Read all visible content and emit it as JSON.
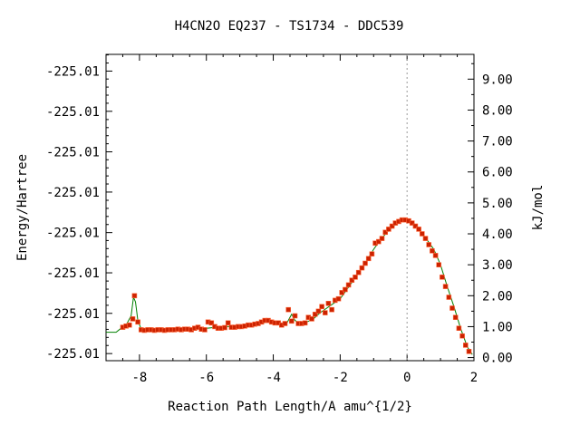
{
  "chart_data": {
    "type": "scatter",
    "title": "H4CN2O    EQ237 - TS1734 - DDC539",
    "xlabel": "Reaction Path Length/A amu^{1/2}",
    "ylabel": "Energy/Hartree",
    "y2label": "kJ/mol",
    "xlim": [
      -9.0,
      2.0
    ],
    "ylim": [
      -0.1,
      9.8
    ],
    "x_ticks": [
      -8,
      -6,
      -4,
      -2,
      0,
      2
    ],
    "x_tick_labels": [
      "-8",
      "-6",
      "-4",
      "-2",
      "0",
      "2"
    ],
    "y2_ticks": [
      0,
      1,
      2,
      3,
      4,
      5,
      6,
      7,
      8,
      9
    ],
    "y2_tick_labels": [
      "0.00",
      "1.00",
      "2.00",
      "3.00",
      "4.00",
      "5.00",
      "6.00",
      "7.00",
      "8.00",
      "9.00"
    ],
    "y_left_ticks": [
      0.13,
      1.43,
      2.74,
      4.04,
      5.35,
      6.65,
      7.96,
      9.26
    ],
    "y_left_tick_labels": [
      "-225.01",
      "-225.01",
      "-225.01",
      "-225.01",
      "-225.01",
      "-225.01",
      "-225.01",
      "-225.01"
    ],
    "grid": false,
    "ts_line_x": 0,
    "line_color": "#008000",
    "marker_color": "#cc2200",
    "series": [
      {
        "x": [
          -8.5,
          -8.4,
          -8.3,
          -8.2,
          -8.15,
          -8.05,
          -7.95,
          -7.85,
          -7.75,
          -7.65,
          -7.55,
          -7.45,
          -7.35,
          -7.25,
          -7.15,
          -7.05,
          -6.95,
          -6.85,
          -6.75,
          -6.65,
          -6.55,
          -6.45,
          -6.35,
          -6.25,
          -6.15,
          -6.05,
          -5.95,
          -5.85,
          -5.75,
          -5.65,
          -5.55,
          -5.45,
          -5.35,
          -5.25,
          -5.15,
          -5.05,
          -4.95,
          -4.85,
          -4.75,
          -4.65,
          -4.55,
          -4.45,
          -4.35,
          -4.25,
          -4.15,
          -4.05,
          -3.95,
          -3.85,
          -3.75,
          -3.65,
          -3.55,
          -3.45,
          -3.35,
          -3.25,
          -3.15,
          -3.05,
          -2.95,
          -2.85,
          -2.75,
          -2.65,
          -2.55,
          -2.45,
          -2.35,
          -2.25,
          -2.15,
          -2.05,
          -1.95,
          -1.85,
          -1.75,
          -1.65,
          -1.55,
          -1.45,
          -1.35,
          -1.25,
          -1.15,
          -1.05,
          -0.95,
          -0.85,
          -0.75,
          -0.65,
          -0.55,
          -0.45,
          -0.35,
          -0.25,
          -0.15,
          -0.05,
          0.05,
          0.15,
          0.25,
          0.35,
          0.45,
          0.55,
          0.65,
          0.75,
          0.85,
          0.95,
          1.05,
          1.15,
          1.25,
          1.35,
          1.45,
          1.55,
          1.65,
          1.75,
          1.85
        ],
        "y": [
          0.98,
          1.02,
          1.05,
          1.25,
          2.0,
          1.15,
          0.9,
          0.88,
          0.9,
          0.9,
          0.88,
          0.9,
          0.9,
          0.88,
          0.9,
          0.9,
          0.9,
          0.92,
          0.9,
          0.92,
          0.92,
          0.9,
          0.95,
          0.98,
          0.92,
          0.9,
          1.15,
          1.12,
          1.0,
          0.95,
          0.95,
          0.97,
          1.12,
          0.98,
          0.98,
          1.0,
          1.0,
          1.02,
          1.05,
          1.05,
          1.08,
          1.1,
          1.15,
          1.2,
          1.2,
          1.15,
          1.12,
          1.12,
          1.05,
          1.1,
          1.55,
          1.18,
          1.35,
          1.1,
          1.1,
          1.12,
          1.3,
          1.25,
          1.4,
          1.5,
          1.65,
          1.45,
          1.75,
          1.55,
          1.85,
          1.9,
          2.1,
          2.2,
          2.35,
          2.5,
          2.6,
          2.75,
          2.9,
          3.05,
          3.2,
          3.35,
          3.7,
          3.75,
          3.85,
          4.05,
          4.15,
          4.25,
          4.35,
          4.4,
          4.45,
          4.45,
          4.42,
          4.35,
          4.25,
          4.15,
          4.0,
          3.85,
          3.65,
          3.45,
          3.3,
          3.0,
          2.6,
          2.3,
          1.95,
          1.6,
          1.3,
          0.95,
          0.7,
          0.4,
          0.2
        ]
      }
    ],
    "curve": {
      "x": [
        -9.0,
        -8.7,
        -8.55,
        -8.4,
        -8.25,
        -8.18,
        -8.12,
        -8.05,
        -7.95,
        -7.8,
        -7.0,
        -6.0,
        -5.5,
        -5.0,
        -4.5,
        -4.2,
        -4.0,
        -3.8,
        -3.6,
        -3.45,
        -3.35,
        -3.2,
        -3.0,
        -2.8,
        -2.6,
        -2.4,
        -2.2,
        -2.0,
        -1.8,
        -1.6,
        -1.4,
        -1.2,
        -1.0,
        -0.8,
        -0.6,
        -0.4,
        -0.2,
        0.0,
        0.2,
        0.4,
        0.6,
        0.8,
        1.0,
        1.2,
        1.4,
        1.6,
        1.8,
        1.95
      ],
      "y": [
        0.82,
        0.82,
        0.95,
        1.05,
        1.35,
        1.95,
        1.8,
        1.2,
        0.92,
        0.88,
        0.9,
        0.95,
        1.0,
        1.0,
        1.05,
        1.15,
        1.18,
        1.1,
        1.1,
        1.4,
        1.2,
        1.1,
        1.15,
        1.25,
        1.45,
        1.6,
        1.75,
        1.9,
        2.2,
        2.5,
        2.8,
        3.15,
        3.5,
        3.8,
        4.05,
        4.25,
        4.4,
        4.45,
        4.35,
        4.1,
        3.8,
        3.5,
        3.0,
        2.3,
        1.65,
        0.95,
        0.35,
        0.1
      ]
    }
  }
}
